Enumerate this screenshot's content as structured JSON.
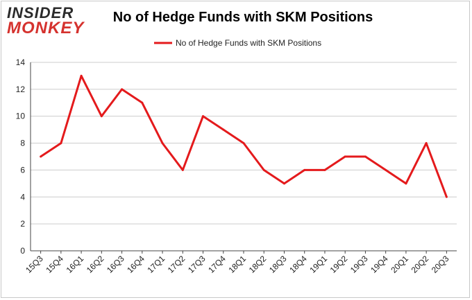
{
  "brand": {
    "line1": "INSIDER",
    "line2": "MONKEY"
  },
  "colors": {
    "series": "#e41a1c",
    "grid": "#cccccc",
    "axis": "#444444"
  },
  "chart_data": {
    "type": "line",
    "title": "No of Hedge Funds with SKM Positions",
    "xlabel": "",
    "ylabel": "",
    "legend_position": "top-center",
    "grid": true,
    "ylim": [
      0,
      14
    ],
    "yticks": [
      0,
      2,
      4,
      6,
      8,
      10,
      12,
      14
    ],
    "categories": [
      "15Q3",
      "15Q4",
      "16Q1",
      "16Q2",
      "16Q3",
      "16Q4",
      "17Q1",
      "17Q2",
      "17Q3",
      "17Q4",
      "18Q1",
      "18Q2",
      "18Q3",
      "18Q4",
      "19Q1",
      "19Q2",
      "19Q3",
      "19Q4",
      "20Q1",
      "20Q2",
      "20Q3"
    ],
    "series": [
      {
        "name": "No of Hedge Funds with SKM Positions",
        "values": [
          7,
          8,
          13,
          10,
          12,
          11,
          8,
          6,
          10,
          9,
          8,
          6,
          5,
          6,
          6,
          7,
          7,
          6,
          5,
          8,
          4
        ]
      }
    ]
  }
}
